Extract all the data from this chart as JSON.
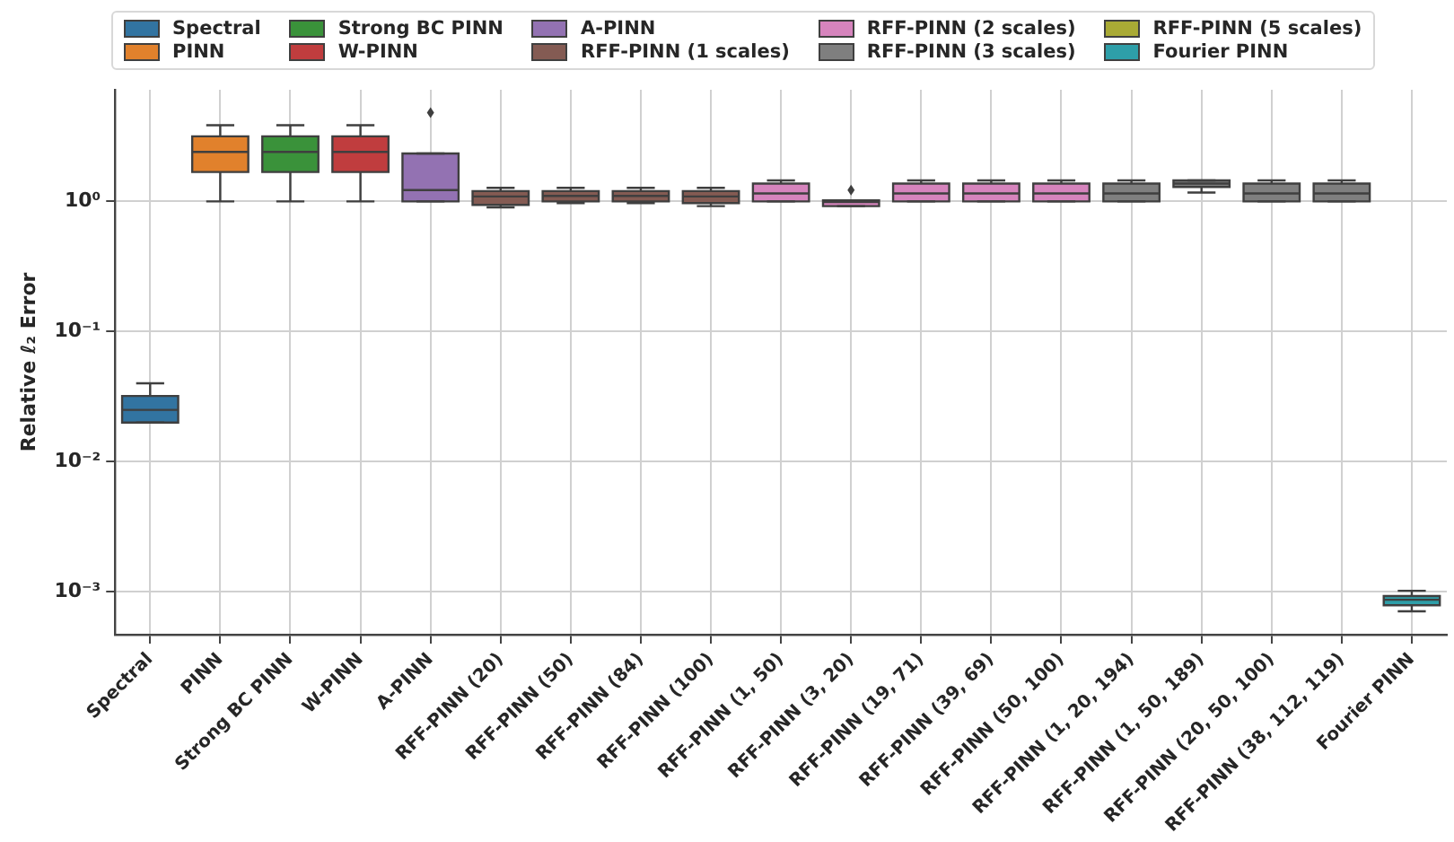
{
  "chart_data": {
    "type": "box",
    "ylabel": "Relative ℓ₂ Error",
    "log": "y",
    "grid": true,
    "legend": "top",
    "ylim": [
      0.00047,
      7.2
    ],
    "yticks": [
      {
        "value": 0.001,
        "label": "10⁻³"
      },
      {
        "value": 0.01,
        "label": "10⁻²"
      },
      {
        "value": 0.1,
        "label": "10⁻¹"
      },
      {
        "value": 1,
        "label": "10⁰"
      }
    ],
    "categories": [
      "Spectral",
      "PINN",
      "Strong BC PINN",
      "W-PINN",
      "A-PINN",
      "RFF-PINN (20)",
      "RFF-PINN (50)",
      "RFF-PINN (84)",
      "RFF-PINN (100)",
      "RFF-PINN (1, 50)",
      "RFF-PINN (3, 20)",
      "RFF-PINN (19, 71)",
      "RFF-PINN (39, 69)",
      "RFF-PINN (50, 100)",
      "RFF-PINN (1, 20, 194)",
      "RFF-PINN (1, 50, 189)",
      "RFF-PINN (20, 50, 100)",
      "RFF-PINN (38, 112, 119)",
      "Fourier PINN"
    ],
    "series": [
      {
        "name": "Spectral",
        "color": "#3274a1",
        "boxes": [
          {
            "low": 0.02,
            "q1": 0.02,
            "median": 0.025,
            "q3": 0.032,
            "high": 0.04
          },
          null,
          null,
          null,
          null,
          null,
          null,
          null,
          null,
          null,
          null,
          null,
          null,
          null,
          null,
          null,
          null,
          null,
          null
        ]
      },
      {
        "name": "PINN",
        "color": "#e1812c",
        "boxes": [
          null,
          {
            "low": 1.0,
            "q1": 1.68,
            "median": 2.4,
            "q3": 3.16,
            "high": 3.85
          },
          null,
          null,
          null,
          null,
          null,
          null,
          null,
          null,
          null,
          null,
          null,
          null,
          null,
          null,
          null,
          null,
          null
        ]
      },
      {
        "name": "Strong BC PINN",
        "color": "#3a923a",
        "boxes": [
          null,
          null,
          {
            "low": 1.0,
            "q1": 1.68,
            "median": 2.4,
            "q3": 3.16,
            "high": 3.85
          },
          null,
          null,
          null,
          null,
          null,
          null,
          null,
          null,
          null,
          null,
          null,
          null,
          null,
          null,
          null,
          null
        ]
      },
      {
        "name": "W-PINN",
        "color": "#c03d3e",
        "boxes": [
          null,
          null,
          null,
          {
            "low": 1.0,
            "q1": 1.68,
            "median": 2.4,
            "q3": 3.16,
            "high": 3.85
          },
          null,
          null,
          null,
          null,
          null,
          null,
          null,
          null,
          null,
          null,
          null,
          null,
          null,
          null,
          null
        ]
      },
      {
        "name": "A-PINN",
        "color": "#9372b2",
        "boxes": [
          null,
          null,
          null,
          null,
          {
            "low": 1.0,
            "q1": 1.0,
            "median": 1.22,
            "q3": 2.33,
            "high": 2.33,
            "outliers": [
              4.8
            ]
          },
          null,
          null,
          null,
          null,
          null,
          null,
          null,
          null,
          null,
          null,
          null,
          null,
          null,
          null
        ]
      },
      {
        "name": "RFF-PINN (1 scales)",
        "color": "#845b53",
        "boxes": [
          null,
          null,
          null,
          null,
          null,
          {
            "low": 0.9,
            "q1": 0.94,
            "median": 1.09,
            "q3": 1.2,
            "high": 1.27
          },
          {
            "low": 0.97,
            "q1": 1.0,
            "median": 1.1,
            "q3": 1.2,
            "high": 1.27
          },
          {
            "low": 0.97,
            "q1": 1.0,
            "median": 1.1,
            "q3": 1.2,
            "high": 1.27
          },
          {
            "low": 0.92,
            "q1": 0.97,
            "median": 1.09,
            "q3": 1.2,
            "high": 1.27
          },
          null,
          null,
          null,
          null,
          null,
          null,
          null,
          null,
          null,
          null
        ]
      },
      {
        "name": "RFF-PINN (2 scales)",
        "color": "#d684bd",
        "boxes": [
          null,
          null,
          null,
          null,
          null,
          null,
          null,
          null,
          null,
          {
            "low": 1.0,
            "q1": 1.0,
            "median": 1.15,
            "q3": 1.37,
            "high": 1.45
          },
          {
            "low": 0.92,
            "q1": 0.92,
            "median": 0.99,
            "q3": 1.02,
            "high": 1.02,
            "outliers": [
              1.22
            ]
          },
          {
            "low": 1.0,
            "q1": 1.0,
            "median": 1.15,
            "q3": 1.37,
            "high": 1.45
          },
          {
            "low": 1.0,
            "q1": 1.0,
            "median": 1.15,
            "q3": 1.37,
            "high": 1.45
          },
          {
            "low": 1.0,
            "q1": 1.0,
            "median": 1.15,
            "q3": 1.37,
            "high": 1.45
          },
          null,
          null,
          null,
          null,
          null
        ]
      },
      {
        "name": "RFF-PINN (3 scales)",
        "color": "#7f7f7f",
        "boxes": [
          null,
          null,
          null,
          null,
          null,
          null,
          null,
          null,
          null,
          null,
          null,
          null,
          null,
          null,
          {
            "low": 1.0,
            "q1": 1.0,
            "median": 1.15,
            "q3": 1.37,
            "high": 1.45
          },
          {
            "low": 1.17,
            "q1": 1.29,
            "median": 1.37,
            "q3": 1.45,
            "high": 1.45
          },
          {
            "low": 1.0,
            "q1": 1.0,
            "median": 1.15,
            "q3": 1.37,
            "high": 1.45
          },
          {
            "low": 1.0,
            "q1": 1.0,
            "median": 1.15,
            "q3": 1.37,
            "high": 1.45
          },
          null
        ]
      },
      {
        "name": "RFF-PINN (5 scales)",
        "color": "#a9aa35",
        "boxes": [
          null,
          null,
          null,
          null,
          null,
          null,
          null,
          null,
          null,
          null,
          null,
          null,
          null,
          null,
          null,
          null,
          null,
          null,
          null
        ]
      },
      {
        "name": "Fourier PINN",
        "color": "#2e9fa9",
        "boxes": [
          null,
          null,
          null,
          null,
          null,
          null,
          null,
          null,
          null,
          null,
          null,
          null,
          null,
          null,
          null,
          null,
          null,
          null,
          {
            "low": 0.00071,
            "q1": 0.00079,
            "median": 0.00087,
            "q3": 0.00093,
            "high": 0.00102
          }
        ]
      }
    ]
  }
}
